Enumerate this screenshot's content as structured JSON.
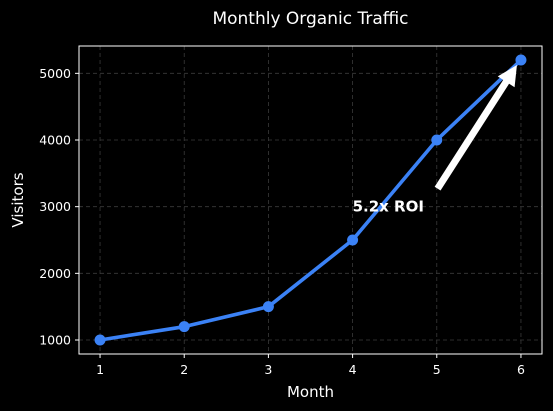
{
  "chart_data": {
    "type": "line",
    "title": "Monthly Organic Traffic",
    "xlabel": "Month",
    "ylabel": "Visitors",
    "x": [
      1,
      2,
      3,
      4,
      5,
      6
    ],
    "values": [
      1000,
      1200,
      1500,
      2500,
      4000,
      5200
    ],
    "xlim": [
      0.75,
      6.25
    ],
    "ylim": [
      790,
      5410
    ],
    "xticks": [
      1,
      2,
      3,
      4,
      5,
      6
    ],
    "yticks": [
      1000,
      2000,
      3000,
      4000,
      5000
    ],
    "grid": true,
    "line_color": "#3b82f6",
    "background": "#000000",
    "annotation": {
      "text": "5.2x ROI",
      "text_at": [
        4,
        3000
      ],
      "arrow_to": [
        6,
        5200
      ]
    }
  }
}
